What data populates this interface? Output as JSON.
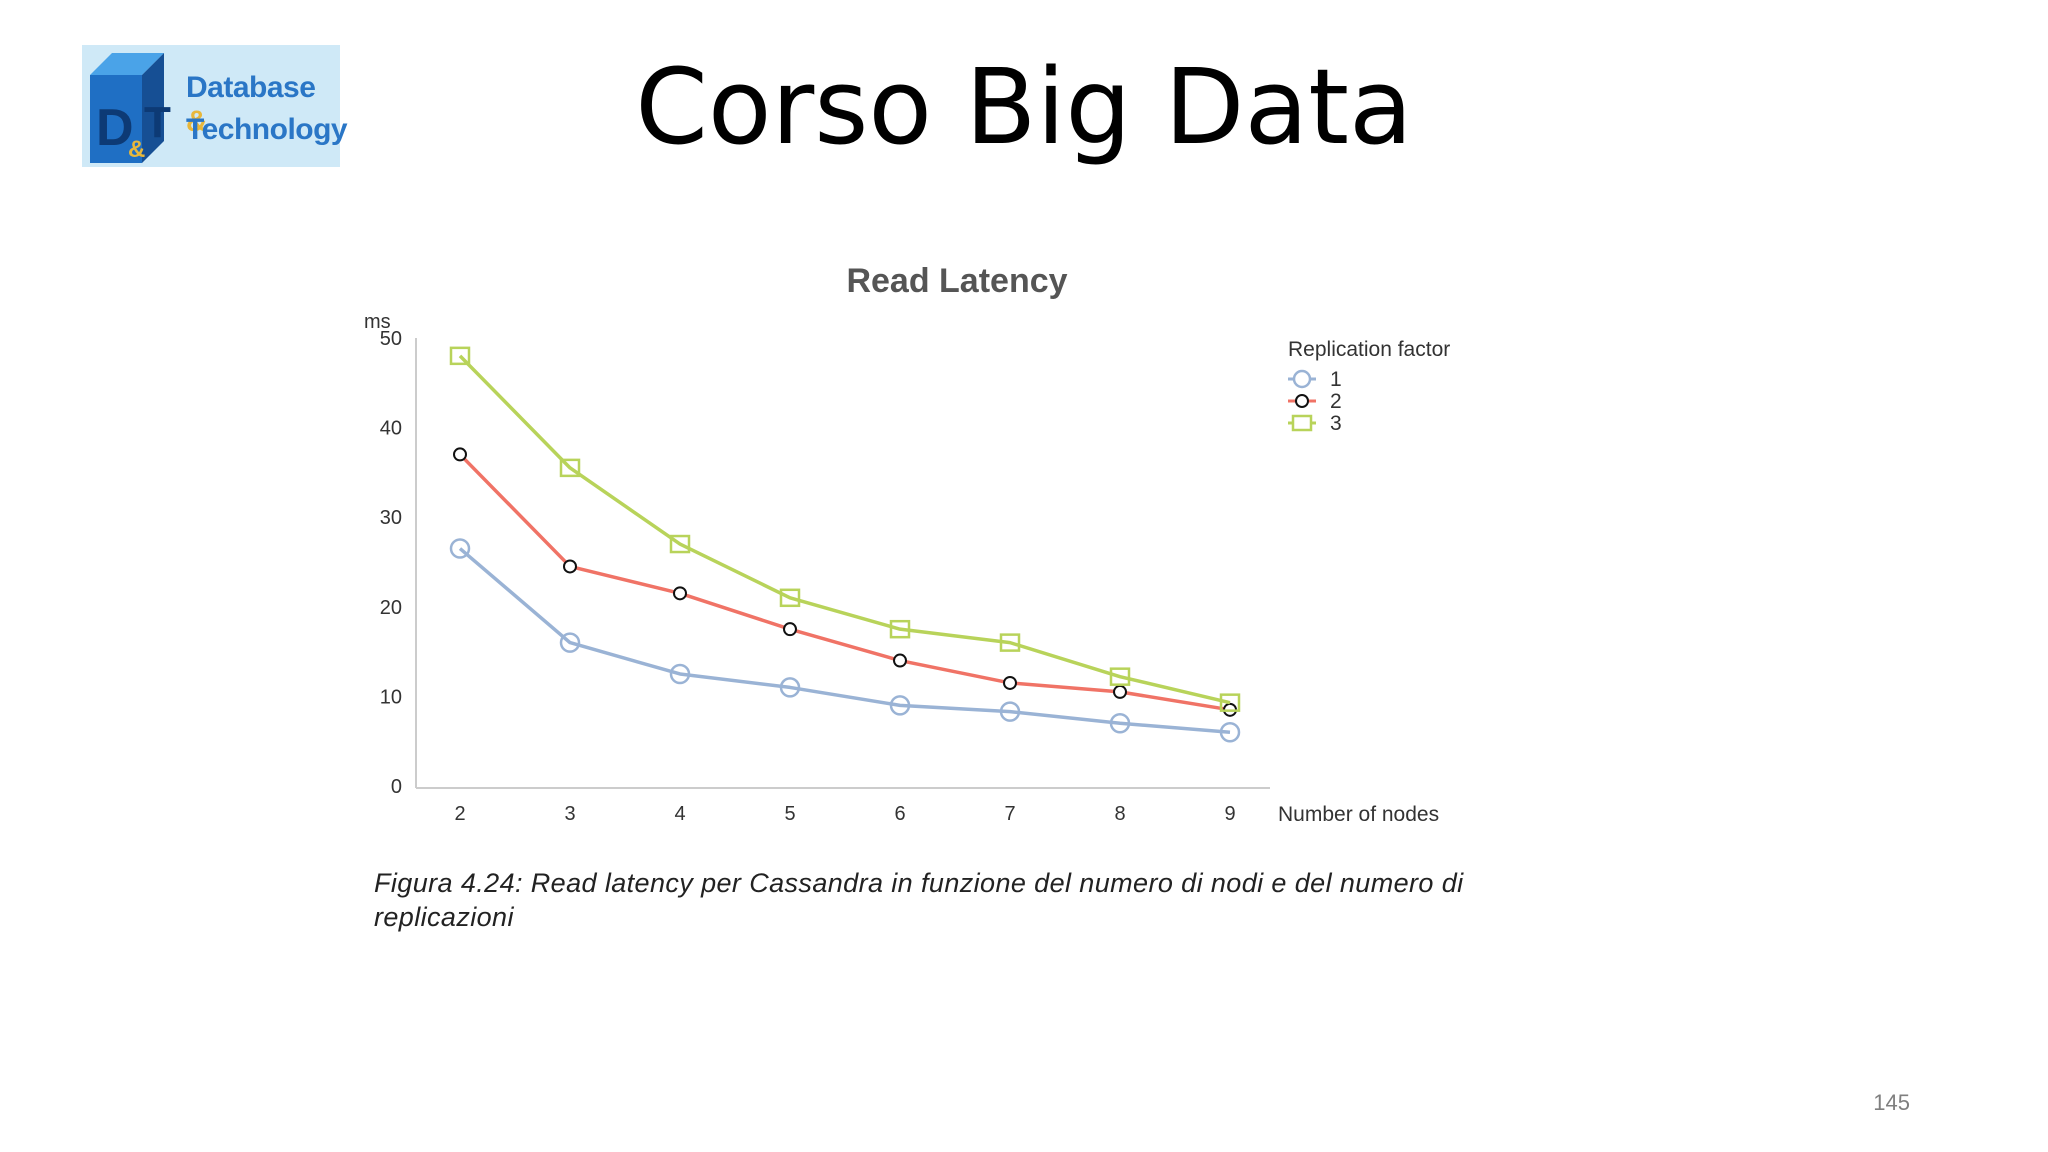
{
  "slide": {
    "title": "Corso Big Data",
    "page_number": "145",
    "logo": {
      "line1": "Database",
      "amp": "&",
      "line2": "Technology",
      "mark": "D&T"
    },
    "caption": "Figura 4.24: Read latency per Cassandra in funzione del numero di nodi e del numero di replicazioni"
  },
  "chart_data": {
    "type": "line",
    "title": "Read Latency",
    "ylabel": "ms",
    "xlabel": "Number of nodes",
    "legend_title": "Replication factor",
    "legend_position": "top-right",
    "x": [
      2,
      3,
      4,
      5,
      6,
      7,
      8,
      9
    ],
    "ylim": [
      0,
      55
    ],
    "yticks": [
      0,
      10,
      20,
      30,
      40,
      50
    ],
    "grid": false,
    "series": [
      {
        "name": "1",
        "color": "#9ab3d5",
        "marker": "circle",
        "values": [
          26.5,
          16,
          12.5,
          11,
          9,
          8.3,
          7,
          6
        ]
      },
      {
        "name": "2",
        "color": "#f07366",
        "marker": "circle-black",
        "values": [
          37,
          24.5,
          21.5,
          17.5,
          14,
          11.5,
          10.5,
          8.5
        ]
      },
      {
        "name": "3",
        "color": "#b8d35a",
        "marker": "square",
        "values": [
          48,
          35.5,
          27,
          21,
          17.5,
          16,
          12.2,
          9.3
        ]
      }
    ]
  }
}
